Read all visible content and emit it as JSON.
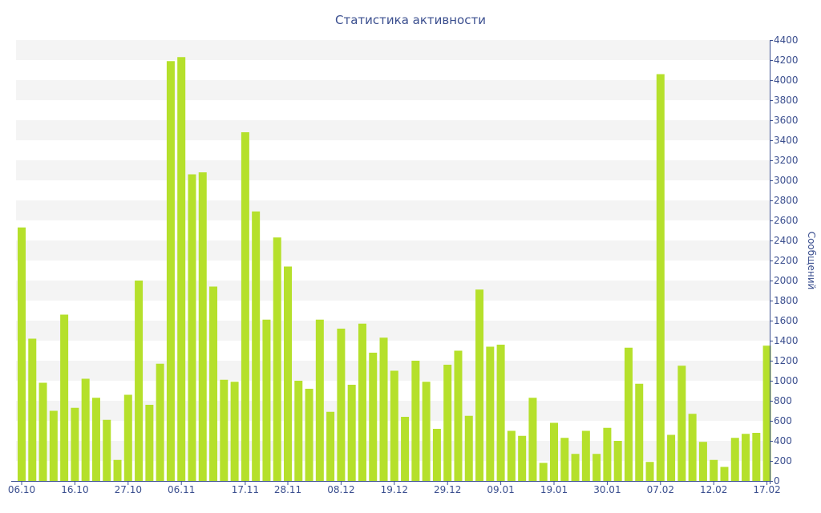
{
  "colors": {
    "bar": "#b5e02b",
    "band": "#f4f4f4",
    "axis": "#3b4f8f",
    "text": "#3b4f8f",
    "background": "#ffffff"
  },
  "chart_data": {
    "type": "bar",
    "title": "Статистика активности",
    "xlabel": "",
    "ylabel": "Сообщений",
    "ylim": [
      0,
      4400
    ],
    "ytick_step": 200,
    "y_axis_side": "right",
    "grid": "alternating horizontal bands",
    "legend": "none",
    "x_tick_labels": [
      "06.10",
      "16.10",
      "27.10",
      "06.11",
      "17.11",
      "28.11",
      "08.12",
      "19.12",
      "29.12",
      "09.01",
      "19.01",
      "30.01",
      "07.02",
      "12.02",
      "17.02"
    ],
    "x_tick_bar_index": [
      0,
      5,
      10,
      15,
      21,
      25,
      30,
      35,
      40,
      45,
      50,
      55,
      60,
      65,
      70
    ],
    "values": [
      2530,
      1420,
      980,
      700,
      1660,
      730,
      1020,
      830,
      610,
      210,
      860,
      2000,
      760,
      1170,
      4190,
      4230,
      3060,
      3080,
      1940,
      1010,
      990,
      3480,
      2690,
      1610,
      2430,
      2140,
      1000,
      920,
      1610,
      690,
      1520,
      960,
      1570,
      1280,
      1430,
      1100,
      640,
      1200,
      990,
      520,
      1160,
      1300,
      650,
      1910,
      1340,
      1360,
      500,
      450,
      830,
      180,
      580,
      430,
      270,
      500,
      270,
      530,
      400,
      1330,
      970,
      190,
      4060,
      460,
      1150,
      670,
      390,
      210,
      140,
      430,
      470,
      480,
      1350
    ]
  }
}
